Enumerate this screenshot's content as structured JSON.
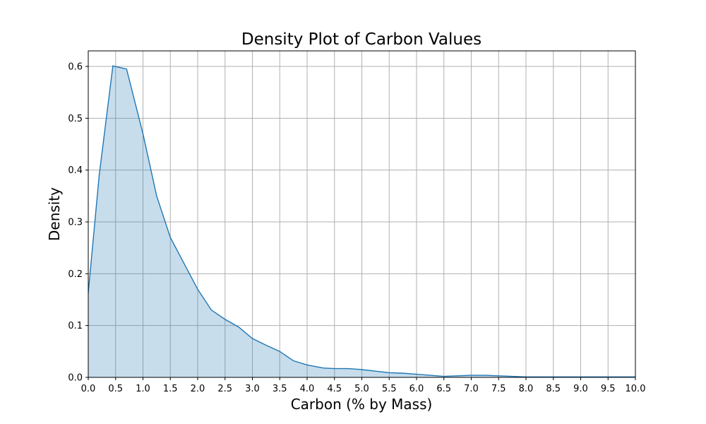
{
  "chart_data": {
    "type": "area",
    "title": "Density Plot of Carbon Values",
    "xlabel": "Carbon (% by Mass)",
    "ylabel": "Density",
    "xlim": [
      0,
      10
    ],
    "ylim": [
      0,
      0.63
    ],
    "grid": true,
    "x_ticks": [
      "0.0",
      "0.5",
      "1.0",
      "1.5",
      "2.0",
      "2.5",
      "3.0",
      "3.5",
      "4.0",
      "4.5",
      "5.0",
      "5.5",
      "6.0",
      "6.5",
      "7.0",
      "7.5",
      "8.0",
      "8.5",
      "9.0",
      "9.5",
      "10.0"
    ],
    "y_ticks": [
      "0.0",
      "0.1",
      "0.2",
      "0.3",
      "0.4",
      "0.5",
      "0.6"
    ],
    "colors": {
      "line": "#1f77b4",
      "fill": "#1f77b4",
      "grid": "#b0b0b0"
    },
    "series": [
      {
        "x": [
          0.0,
          0.2,
          0.45,
          0.7,
          1.0,
          1.25,
          1.5,
          1.75,
          2.0,
          2.25,
          2.5,
          2.75,
          3.0,
          3.25,
          3.5,
          3.75,
          4.0,
          4.3,
          4.5,
          4.75,
          5.0,
          5.25,
          5.5,
          5.75,
          6.0,
          6.25,
          6.5,
          6.75,
          7.0,
          7.25,
          7.5,
          7.75,
          8.0,
          8.5,
          9.0,
          9.5,
          10.0
        ],
        "y": [
          0.163,
          0.39,
          0.601,
          0.595,
          0.47,
          0.35,
          0.27,
          0.22,
          0.17,
          0.13,
          0.112,
          0.097,
          0.075,
          0.062,
          0.05,
          0.032,
          0.024,
          0.018,
          0.017,
          0.017,
          0.015,
          0.012,
          0.009,
          0.008,
          0.006,
          0.004,
          0.002,
          0.003,
          0.004,
          0.004,
          0.003,
          0.002,
          0.001,
          0.001,
          0.001,
          0.001,
          0.001
        ]
      }
    ]
  }
}
